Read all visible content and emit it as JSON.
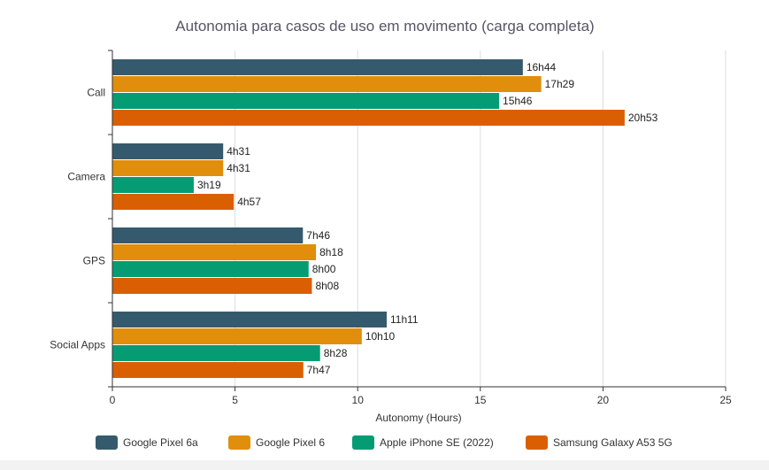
{
  "chart_data": {
    "type": "bar",
    "orientation": "horizontal",
    "title": "Autonomia para casos de uso em movimento (carga completa)",
    "xlabel": "Autonomy (Hours)",
    "ylabel": "",
    "xlim": [
      0,
      25
    ],
    "xticks": [
      "0",
      "5",
      "10",
      "15",
      "20",
      "25"
    ],
    "grid": true,
    "legend_position": "bottom",
    "categories": [
      "Call",
      "Camera",
      "GPS",
      "Social Apps"
    ],
    "series": [
      {
        "name": "Google Pixel 6a",
        "color": "#355a6d",
        "values": [
          16.733,
          4.517,
          7.767,
          11.183
        ],
        "labels": [
          "16h44",
          "4h31",
          "7h46",
          "11h11"
        ]
      },
      {
        "name": "Google Pixel 6",
        "color": "#e08e0b",
        "values": [
          17.483,
          4.517,
          8.3,
          10.167
        ],
        "labels": [
          "17h29",
          "4h31",
          "8h18",
          "10h10"
        ]
      },
      {
        "name": "Apple iPhone SE (2022)",
        "color": "#069c73",
        "values": [
          15.767,
          3.317,
          8.0,
          8.467
        ],
        "labels": [
          "15h46",
          "3h19",
          "8h00",
          "8h28"
        ]
      },
      {
        "name": "Samsung Galaxy A53 5G",
        "color": "#d95f02",
        "values": [
          20.883,
          4.95,
          8.133,
          7.783
        ],
        "labels": [
          "20h53",
          "4h57",
          "8h08",
          "7h47"
        ]
      }
    ]
  }
}
